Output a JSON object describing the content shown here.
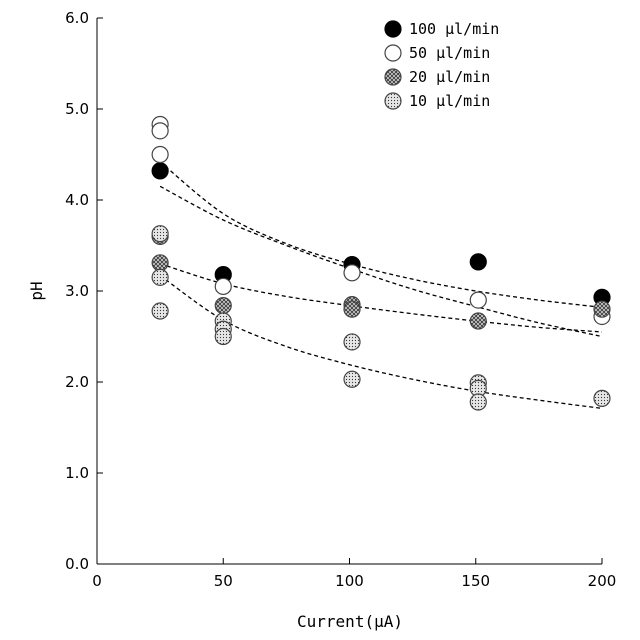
{
  "chart_data": {
    "type": "scatter",
    "title": "",
    "xlabel": "Current(μA)",
    "ylabel": "pH",
    "xlim": [
      0,
      200
    ],
    "ylim": [
      0,
      6
    ],
    "xticks": [
      0,
      50,
      100,
      150,
      200
    ],
    "xtick_labels": [
      "0",
      "50",
      "100",
      "150",
      "200"
    ],
    "yticks": [
      0,
      1,
      2,
      3,
      4,
      5,
      6
    ],
    "ytick_labels": [
      "0.0",
      "1.0",
      "2.0",
      "3.0",
      "4.0",
      "5.0",
      "6.0"
    ],
    "grid": false,
    "legend_position": "top-right",
    "series": [
      {
        "name": "100 μl/min",
        "marker": "filled-black",
        "points": [
          [
            25,
            4.32
          ],
          [
            50,
            3.18
          ],
          [
            101,
            3.29
          ],
          [
            151,
            3.32
          ],
          [
            200,
            2.93
          ]
        ],
        "trend": [
          [
            25,
            4.42
          ],
          [
            50,
            3.85
          ],
          [
            75,
            3.52
          ],
          [
            100,
            3.3
          ],
          [
            125,
            3.13
          ],
          [
            150,
            3.0
          ],
          [
            175,
            2.9
          ],
          [
            200,
            2.82
          ]
        ]
      },
      {
        "name": "50 μl/min",
        "marker": "open-white",
        "points": [
          [
            25,
            4.83
          ],
          [
            25,
            4.76
          ],
          [
            25,
            4.5
          ],
          [
            50,
            3.05
          ],
          [
            101,
            3.2
          ],
          [
            151,
            2.9
          ],
          [
            200,
            2.72
          ]
        ],
        "trend": [
          [
            25,
            4.15
          ],
          [
            50,
            3.78
          ],
          [
            75,
            3.5
          ],
          [
            100,
            3.25
          ],
          [
            125,
            3.02
          ],
          [
            150,
            2.83
          ],
          [
            175,
            2.65
          ],
          [
            200,
            2.5
          ]
        ]
      },
      {
        "name": "20 μl/min",
        "marker": "crosshatch-gray",
        "points": [
          [
            25,
            3.6
          ],
          [
            25,
            3.31
          ],
          [
            50,
            2.84
          ],
          [
            101,
            2.85
          ],
          [
            101,
            2.8
          ],
          [
            151,
            2.67
          ],
          [
            200,
            2.8
          ]
        ],
        "trend": [
          [
            25,
            3.3
          ],
          [
            50,
            3.08
          ],
          [
            75,
            2.94
          ],
          [
            100,
            2.84
          ],
          [
            125,
            2.75
          ],
          [
            150,
            2.67
          ],
          [
            175,
            2.6
          ],
          [
            200,
            2.55
          ]
        ]
      },
      {
        "name": "10 μl/min",
        "marker": "dotted-gray",
        "points": [
          [
            25,
            3.63
          ],
          [
            25,
            3.15
          ],
          [
            25,
            2.78
          ],
          [
            50,
            2.67
          ],
          [
            50,
            2.58
          ],
          [
            50,
            2.5
          ],
          [
            101,
            2.44
          ],
          [
            101,
            2.03
          ],
          [
            151,
            1.99
          ],
          [
            151,
            1.93
          ],
          [
            151,
            1.78
          ],
          [
            200,
            1.82
          ]
        ],
        "trend": [
          [
            25,
            3.17
          ],
          [
            50,
            2.68
          ],
          [
            75,
            2.39
          ],
          [
            100,
            2.19
          ],
          [
            125,
            2.03
          ],
          [
            150,
            1.9
          ],
          [
            175,
            1.8
          ],
          [
            200,
            1.71
          ]
        ]
      }
    ]
  }
}
